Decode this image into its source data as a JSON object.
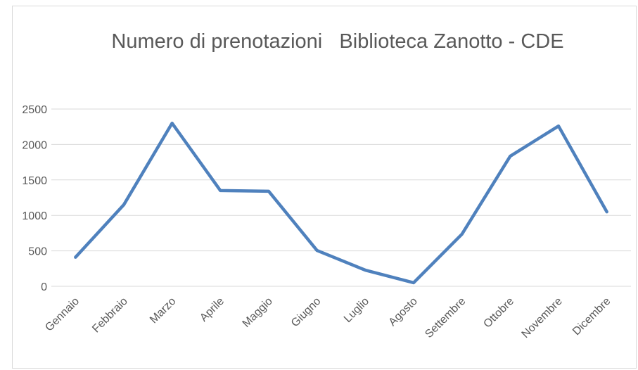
{
  "chart_data": {
    "type": "line",
    "title": "Numero di prenotazioni   Biblioteca Zanotto - CDE",
    "categories": [
      "Gennaio",
      "Febbraio",
      "Marzo",
      "Aprile",
      "Maggio",
      "Giugno",
      "Luglio",
      "Agosto",
      "Settembre",
      "Ottobre",
      "Novembre",
      "Dicembre"
    ],
    "values": [
      410,
      1150,
      2300,
      1350,
      1340,
      505,
      228,
      50,
      735,
      1835,
      2260,
      1050
    ],
    "color": "#4f81bd",
    "ylim": [
      0,
      2500
    ],
    "yticks": [
      0,
      500,
      1000,
      1500,
      2000,
      2500
    ],
    "grid": true
  }
}
